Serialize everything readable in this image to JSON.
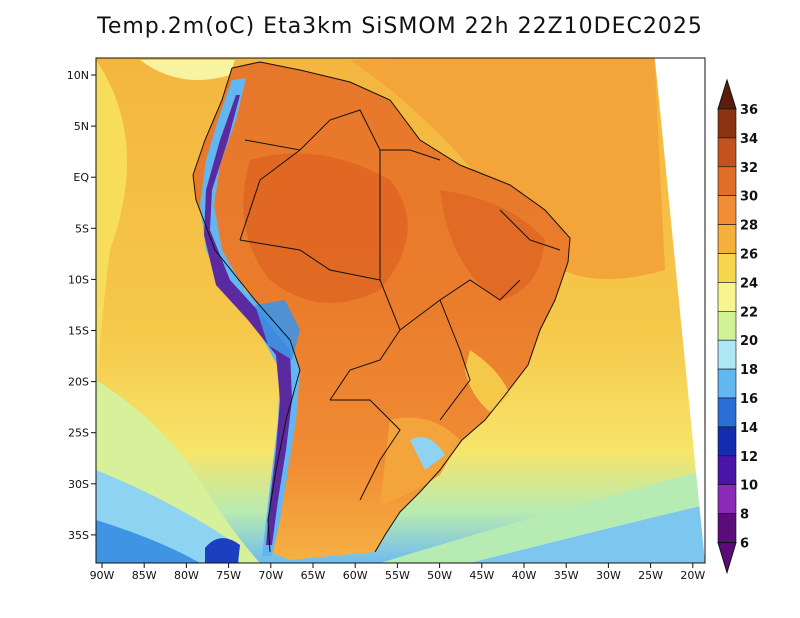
{
  "title": "Temp.2m(oC) Eta3km SiSMOM 22h 22Z10DEC2025",
  "lon_labels": [
    "90W",
    "85W",
    "80W",
    "75W",
    "70W",
    "65W",
    "60W",
    "55W",
    "50W",
    "45W",
    "40W",
    "35W",
    "30W",
    "25W",
    "20W"
  ],
  "lat_labels": [
    "10N",
    "5N",
    "EQ",
    "5S",
    "10S",
    "15S",
    "20S",
    "25S",
    "30S",
    "35S"
  ],
  "colorbar": {
    "labels": [
      "36",
      "34",
      "32",
      "30",
      "28",
      "26",
      "24",
      "22",
      "20",
      "18",
      "16",
      "14",
      "12",
      "10",
      "8",
      "6"
    ],
    "colors": [
      "#5b1e0c",
      "#8c3312",
      "#c3521d",
      "#e26d26",
      "#f28d35",
      "#f5b03c",
      "#f7d54c",
      "#f8f590",
      "#d2f296",
      "#aee7f4",
      "#62b7f0",
      "#2b6fd6",
      "#142cb0",
      "#4a14a8",
      "#8a2ab6",
      "#5c0c7a"
    ]
  },
  "colors": {
    "ocean_warm": "#f5c046",
    "ocean_mid": "#f6e872",
    "land_hot": "#e26d26",
    "land_warm": "#f28d35",
    "andes_cold": "#62b7f0",
    "andes_coldest": "#5b2aa0"
  }
}
